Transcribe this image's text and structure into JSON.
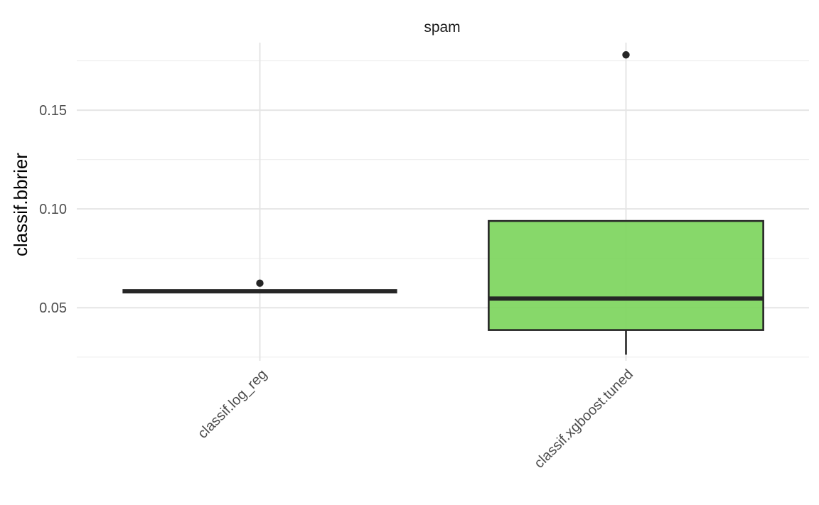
{
  "chart_data": {
    "type": "box",
    "facet_title": "spam",
    "ylabel": "classif.bbrier",
    "xlabel": "",
    "categories": [
      "classif.log_reg",
      "classif.xgboost.tuned"
    ],
    "boxes": [
      {
        "category": "classif.log_reg",
        "q1": 0.0583,
        "median": 0.0583,
        "q3": 0.0583,
        "whisker_low": 0.0583,
        "whisker_high": 0.0583,
        "outliers": [
          0.0624
        ],
        "fill": null
      },
      {
        "category": "classif.xgboost.tuned",
        "q1": 0.0387,
        "median": 0.0546,
        "q3": 0.0939,
        "whisker_low": 0.0262,
        "whisker_high": 0.0939,
        "outliers": [
          0.178
        ],
        "fill": "#7ad45a"
      }
    ],
    "y_ticks": [
      0.05,
      0.1,
      0.15
    ],
    "y_tick_labels": [
      "0.05",
      "0.10",
      "0.15"
    ],
    "ylim": [
      0.0231,
      0.1842
    ],
    "grid": true,
    "colors": {
      "box_fill": "#7ad45a",
      "line": "#262626",
      "grid": "#e5e5e5"
    }
  }
}
